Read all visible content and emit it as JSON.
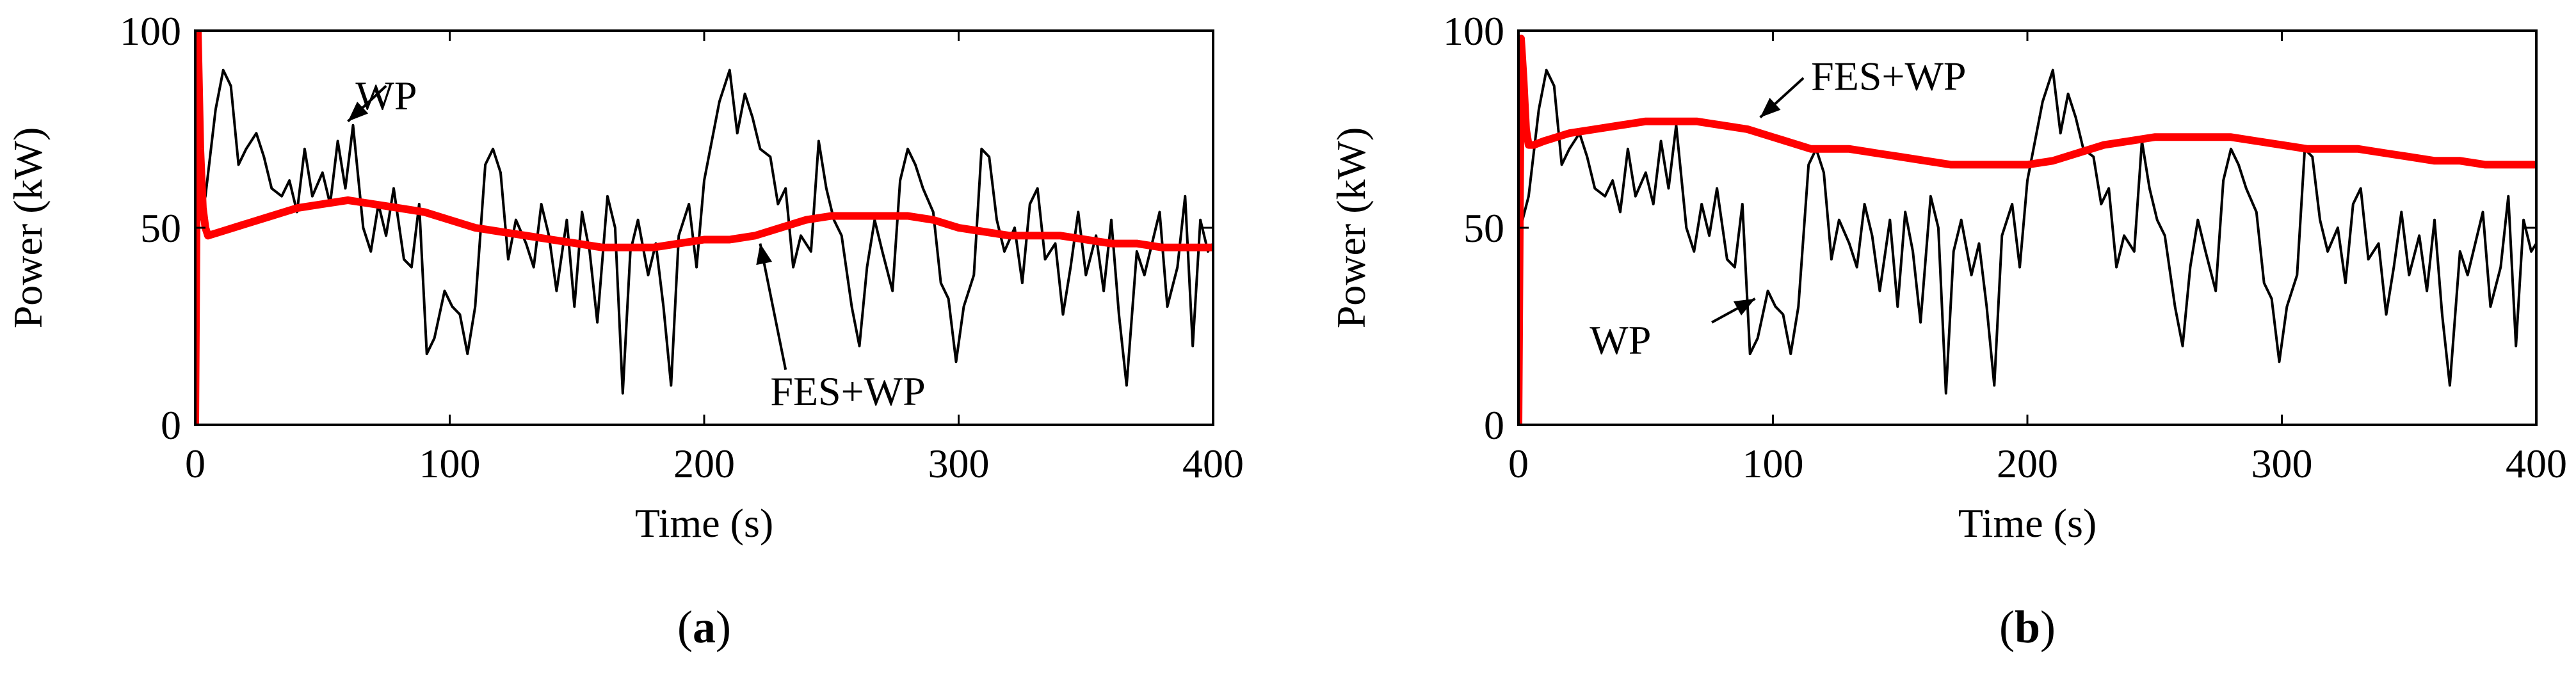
{
  "chart_data": [
    {
      "type": "line",
      "panel_label": "(a)",
      "panel_label_parts": [
        "(",
        "a",
        ")"
      ],
      "xlabel": "Time (s)",
      "ylabel": "Power (kW)",
      "xlim": [
        0,
        400
      ],
      "ylim": [
        0,
        100
      ],
      "xticks": [
        "0",
        "100",
        "200",
        "300",
        "400"
      ],
      "yticks": [
        "0",
        "50",
        "100"
      ],
      "grid": false,
      "annotations": [
        {
          "text": "WP",
          "target_series": "WP",
          "target_x": 60,
          "target_y": 77
        },
        {
          "text": "FES+WP",
          "target_series": "FES+WP",
          "target_x": 222,
          "target_y": 46
        }
      ],
      "series": [
        {
          "name": "WP",
          "color": "#000000",
          "x": [
            0,
            4,
            8,
            11,
            14,
            17,
            20,
            24,
            27,
            30,
            34,
            37,
            40,
            43,
            46,
            50,
            53,
            56,
            59,
            62,
            66,
            69,
            72,
            75,
            78,
            82,
            85,
            88,
            91,
            94,
            98,
            101,
            104,
            107,
            110,
            114,
            117,
            120,
            123,
            126,
            130,
            133,
            136,
            139,
            142,
            146,
            149,
            152,
            155,
            158,
            162,
            165,
            168,
            171,
            174,
            178,
            181,
            184,
            187,
            190,
            194,
            197,
            200,
            203,
            206,
            210,
            213,
            216,
            219,
            222,
            226,
            229,
            232,
            235,
            238,
            242,
            245,
            248,
            251,
            254,
            258,
            261,
            264,
            267,
            270,
            274,
            277,
            280,
            283,
            286,
            290,
            293,
            296,
            299,
            302,
            306,
            309,
            312,
            315,
            318,
            322,
            325,
            328,
            331,
            334,
            338,
            341,
            344,
            347,
            350,
            354,
            357,
            360,
            363,
            366,
            370,
            373,
            376,
            379,
            382,
            386,
            389,
            392,
            395,
            398,
            400
          ],
          "values": [
            48,
            58,
            80,
            90,
            86,
            66,
            70,
            74,
            68,
            60,
            58,
            62,
            54,
            70,
            58,
            64,
            56,
            72,
            60,
            76,
            50,
            44,
            56,
            48,
            60,
            42,
            40,
            56,
            18,
            22,
            34,
            30,
            28,
            18,
            30,
            66,
            70,
            64,
            42,
            52,
            46,
            40,
            56,
            48,
            34,
            52,
            30,
            54,
            44,
            26,
            58,
            50,
            8,
            44,
            52,
            38,
            46,
            30,
            10,
            48,
            56,
            40,
            62,
            72,
            82,
            90,
            74,
            84,
            78,
            70,
            68,
            56,
            60,
            40,
            48,
            44,
            72,
            60,
            52,
            48,
            30,
            20,
            40,
            52,
            44,
            34,
            62,
            70,
            66,
            60,
            54,
            36,
            32,
            16,
            30,
            38,
            70,
            68,
            52,
            44,
            50,
            36,
            56,
            60,
            42,
            46,
            28,
            40,
            54,
            38,
            48,
            34,
            52,
            28,
            10,
            44,
            38,
            46,
            54,
            30,
            40,
            58,
            20,
            52,
            44,
            46
          ]
        },
        {
          "name": "FES+WP",
          "color": "#ff0000",
          "x": [
            0,
            1,
            2,
            3,
            4,
            5,
            10,
            20,
            30,
            40,
            50,
            60,
            70,
            80,
            90,
            100,
            110,
            120,
            130,
            140,
            150,
            160,
            170,
            180,
            190,
            200,
            210,
            220,
            230,
            240,
            250,
            260,
            270,
            280,
            290,
            300,
            310,
            320,
            330,
            340,
            350,
            360,
            370,
            380,
            390,
            400
          ],
          "values": [
            0,
            100,
            70,
            55,
            50,
            48,
            49,
            51,
            53,
            55,
            56,
            57,
            56,
            55,
            54,
            52,
            50,
            49,
            48,
            47,
            46,
            45,
            45,
            45,
            46,
            47,
            47,
            48,
            50,
            52,
            53,
            53,
            53,
            53,
            52,
            50,
            49,
            48,
            48,
            48,
            47,
            46,
            46,
            45,
            45,
            45
          ]
        }
      ]
    },
    {
      "type": "line",
      "panel_label": "(b)",
      "panel_label_parts": [
        "(",
        "b",
        ")"
      ],
      "xlabel": "Time (s)",
      "ylabel": "Power (kW)",
      "xlim": [
        0,
        400
      ],
      "ylim": [
        0,
        100
      ],
      "xticks": [
        "0",
        "100",
        "200",
        "300",
        "400"
      ],
      "yticks": [
        "0",
        "50",
        "100"
      ],
      "grid": false,
      "annotations": [
        {
          "text": "FES+WP",
          "target_series": "FES+WP",
          "target_x": 95,
          "target_y": 78
        },
        {
          "text": "WP",
          "target_series": "WP",
          "target_x": 93,
          "target_y": 32
        }
      ],
      "series": [
        {
          "name": "WP",
          "color": "#000000",
          "x": [
            0,
            4,
            8,
            11,
            14,
            17,
            20,
            24,
            27,
            30,
            34,
            37,
            40,
            43,
            46,
            50,
            53,
            56,
            59,
            62,
            66,
            69,
            72,
            75,
            78,
            82,
            85,
            88,
            91,
            94,
            98,
            101,
            104,
            107,
            110,
            114,
            117,
            120,
            123,
            126,
            130,
            133,
            136,
            139,
            142,
            146,
            149,
            152,
            155,
            158,
            162,
            165,
            168,
            171,
            174,
            178,
            181,
            184,
            187,
            190,
            194,
            197,
            200,
            203,
            206,
            210,
            213,
            216,
            219,
            222,
            226,
            229,
            232,
            235,
            238,
            242,
            245,
            248,
            251,
            254,
            258,
            261,
            264,
            267,
            270,
            274,
            277,
            280,
            283,
            286,
            290,
            293,
            296,
            299,
            302,
            306,
            309,
            312,
            315,
            318,
            322,
            325,
            328,
            331,
            334,
            338,
            341,
            344,
            347,
            350,
            354,
            357,
            360,
            363,
            366,
            370,
            373,
            376,
            379,
            382,
            386,
            389,
            392,
            395,
            398,
            400
          ],
          "values": [
            48,
            58,
            80,
            90,
            86,
            66,
            70,
            74,
            68,
            60,
            58,
            62,
            54,
            70,
            58,
            64,
            56,
            72,
            60,
            76,
            50,
            44,
            56,
            48,
            60,
            42,
            40,
            56,
            18,
            22,
            34,
            30,
            28,
            18,
            30,
            66,
            70,
            64,
            42,
            52,
            46,
            40,
            56,
            48,
            34,
            52,
            30,
            54,
            44,
            26,
            58,
            50,
            8,
            44,
            52,
            38,
            46,
            30,
            10,
            48,
            56,
            40,
            62,
            72,
            82,
            90,
            74,
            84,
            78,
            70,
            68,
            56,
            60,
            40,
            48,
            44,
            72,
            60,
            52,
            48,
            30,
            20,
            40,
            52,
            44,
            34,
            62,
            70,
            66,
            60,
            54,
            36,
            32,
            16,
            30,
            38,
            70,
            68,
            52,
            44,
            50,
            36,
            56,
            60,
            42,
            46,
            28,
            40,
            54,
            38,
            48,
            34,
            52,
            28,
            10,
            44,
            38,
            46,
            54,
            30,
            40,
            58,
            20,
            52,
            44,
            46
          ]
        },
        {
          "name": "FES+WP",
          "color": "#ff0000",
          "x": [
            0,
            1,
            2,
            3,
            4,
            6,
            10,
            20,
            30,
            40,
            50,
            60,
            70,
            80,
            90,
            100,
            110,
            115,
            120,
            130,
            140,
            150,
            160,
            170,
            180,
            190,
            200,
            210,
            220,
            230,
            240,
            250,
            260,
            270,
            280,
            290,
            300,
            310,
            320,
            330,
            340,
            350,
            360,
            370,
            380,
            390,
            400
          ],
          "values": [
            0,
            98,
            88,
            75,
            71,
            71,
            72,
            74,
            75,
            76,
            77,
            77,
            77,
            76,
            75,
            73,
            71,
            70,
            70,
            70,
            69,
            68,
            67,
            66,
            66,
            66,
            66,
            67,
            69,
            71,
            72,
            73,
            73,
            73,
            73,
            72,
            71,
            70,
            70,
            70,
            69,
            68,
            67,
            67,
            66,
            66,
            66
          ]
        }
      ]
    }
  ]
}
